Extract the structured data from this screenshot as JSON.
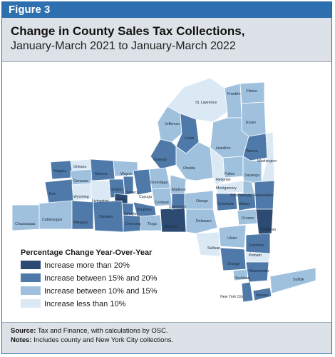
{
  "figure_label": "Figure 3",
  "title_line1": "Change in County Sales Tax Collections,",
  "title_line2": "January-March 2021 to January-March 2022",
  "legend": {
    "title": "Percentage Change Year-Over-Year",
    "items": [
      {
        "label": "Increase more than 20%",
        "color": "#2c4a72"
      },
      {
        "label": "Increase between 15% and 20%",
        "color": "#4f79a8"
      },
      {
        "label": "Increase between 10% and 15%",
        "color": "#9fc1de"
      },
      {
        "label": "Increase less than 10%",
        "color": "#dbe9f4"
      }
    ]
  },
  "counties": [
    {
      "name": "St. Lawrence",
      "color": "#dbe9f4"
    },
    {
      "name": "Franklin",
      "color": "#9fc1de"
    },
    {
      "name": "Clinton",
      "color": "#9fc1de"
    },
    {
      "name": "Essex",
      "color": "#9fc1de"
    },
    {
      "name": "Jefferson",
      "color": "#9fc1de"
    },
    {
      "name": "Lewis",
      "color": "#4f79a8"
    },
    {
      "name": "Hamilton",
      "color": "#9fc1de"
    },
    {
      "name": "Warren",
      "color": "#4f79a8"
    },
    {
      "name": "Washington",
      "color": "#dbe9f4"
    },
    {
      "name": "Oswego",
      "color": "#4f79a8"
    },
    {
      "name": "Oneida",
      "color": "#9fc1de"
    },
    {
      "name": "Herkimer",
      "color": "#dbe9f4"
    },
    {
      "name": "Fulton",
      "color": "#9fc1de"
    },
    {
      "name": "Saratoga",
      "color": "#9fc1de"
    },
    {
      "name": "Orleans",
      "color": "#dbe9f4"
    },
    {
      "name": "Niagara",
      "color": "#4f79a8"
    },
    {
      "name": "Genesee",
      "color": "#9fc1de"
    },
    {
      "name": "Monroe",
      "color": "#4f79a8"
    },
    {
      "name": "Wayne",
      "color": "#9fc1de"
    },
    {
      "name": "Onondaga",
      "color": "#9fc1de"
    },
    {
      "name": "Madison",
      "color": "#9fc1de"
    },
    {
      "name": "Montgomery",
      "color": "#dbe9f4"
    },
    {
      "name": "Schenectady",
      "color": "#9fc1de"
    },
    {
      "name": "Erie",
      "color": "#4f79a8"
    },
    {
      "name": "Wyoming",
      "color": "#dbe9f4"
    },
    {
      "name": "Livingston",
      "color": "#dbe9f4"
    },
    {
      "name": "Ontario",
      "color": "#4f79a8"
    },
    {
      "name": "Seneca",
      "color": "#4f79a8"
    },
    {
      "name": "Cayuga",
      "color": "#4f79a8"
    },
    {
      "name": "Yates",
      "color": "#2c4a72"
    },
    {
      "name": "Cortland",
      "color": "#9fc1de"
    },
    {
      "name": "Otsego",
      "color": "#9fc1de"
    },
    {
      "name": "Schoharie",
      "color": "#4f79a8"
    },
    {
      "name": "Albany",
      "color": "#4f79a8"
    },
    {
      "name": "Rensselaer",
      "color": "#4f79a8"
    },
    {
      "name": "Chautauqua",
      "color": "#9fc1de"
    },
    {
      "name": "Cattaraugus",
      "color": "#9fc1de"
    },
    {
      "name": "Allegany",
      "color": "#4f79a8"
    },
    {
      "name": "Steuben",
      "color": "#4f79a8"
    },
    {
      "name": "Schuyler",
      "color": "#4f79a8"
    },
    {
      "name": "Tompkins",
      "color": "#4f79a8"
    },
    {
      "name": "Chemung",
      "color": "#4f79a8"
    },
    {
      "name": "Tioga",
      "color": "#9fc1de"
    },
    {
      "name": "Broome",
      "color": "#2c4a72"
    },
    {
      "name": "Chenango",
      "color": "#4f79a8"
    },
    {
      "name": "Delaware",
      "color": "#9fc1de"
    },
    {
      "name": "Greene",
      "color": "#9fc1de"
    },
    {
      "name": "Columbia",
      "color": "#2c4a72"
    },
    {
      "name": "Ulster",
      "color": "#9fc1de"
    },
    {
      "name": "Sullivan",
      "color": "#dbe9f4"
    },
    {
      "name": "Dutchess",
      "color": "#4f79a8"
    },
    {
      "name": "Orange",
      "color": "#4f79a8"
    },
    {
      "name": "Putnam",
      "color": "#dbe9f4"
    },
    {
      "name": "Rockland",
      "color": "#9fc1de"
    },
    {
      "name": "Westchester",
      "color": "#4f79a8"
    },
    {
      "name": "New York City",
      "color": "#4f79a8"
    },
    {
      "name": "Nassau",
      "color": "#4f79a8"
    },
    {
      "name": "Suffolk",
      "color": "#9fc1de"
    }
  ],
  "footer": {
    "source_label": "Source:",
    "source_text": " Tax and Finance, with calculations by OSC.",
    "notes_label": "Notes:",
    "notes_text": " Includes county and New York City collections."
  }
}
